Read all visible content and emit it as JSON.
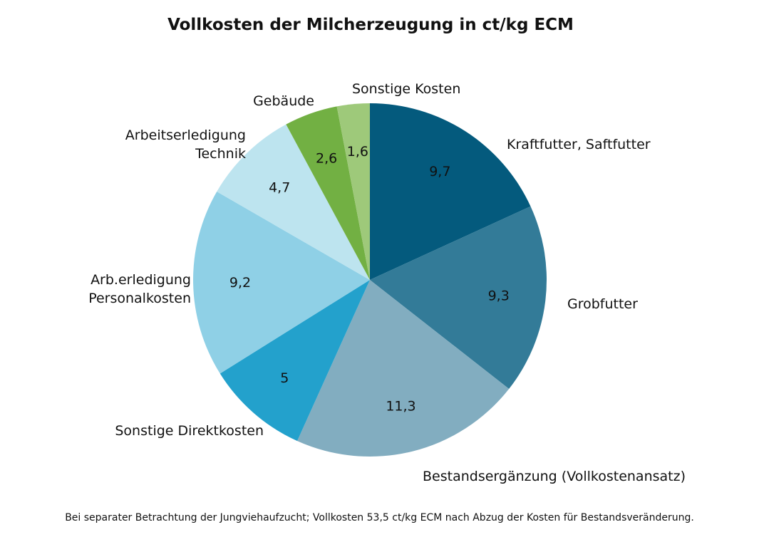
{
  "chart_data": {
    "type": "pie",
    "title": "Vollkosten der Milcherzeugung in ct/kg ECM",
    "footnote": "Bei separater Betrachtung der Jungviehaufzucht; Vollkosten 53,5 ct/kg ECM nach Abzug der Kosten für Bestandsveränderung.",
    "start_angle_deg": 0,
    "direction": "clockwise",
    "slices": [
      {
        "label": [
          "Kraftfutter, Saftfutter"
        ],
        "value": 9.7,
        "value_text": "9,7",
        "color": "#045a7d"
      },
      {
        "label": [
          "Grobfutter"
        ],
        "value": 9.3,
        "value_text": "9,3",
        "color": "#337b98"
      },
      {
        "label": [
          "Bestandsergänzung (Vollkostenansatz)"
        ],
        "value": 11.3,
        "value_text": "11,3",
        "color": "#82adc0"
      },
      {
        "label": [
          "Sonstige Direktkosten"
        ],
        "value": 5,
        "value_text": "5",
        "color": "#23a1cc"
      },
      {
        "label": [
          "Arb.erledigung",
          "Personalkosten"
        ],
        "value": 9.2,
        "value_text": "9,2",
        "color": "#8fd0e6"
      },
      {
        "label": [
          "Arbeitserledigung",
          "Technik"
        ],
        "value": 4.7,
        "value_text": "4,7",
        "color": "#bde4ef"
      },
      {
        "label": [
          "Gebäude"
        ],
        "value": 2.6,
        "value_text": "2,6",
        "color": "#72b043"
      },
      {
        "label": [
          "Sonstige Kosten"
        ],
        "value": 1.6,
        "value_text": "1,6",
        "color": "#9ec97a"
      }
    ]
  }
}
